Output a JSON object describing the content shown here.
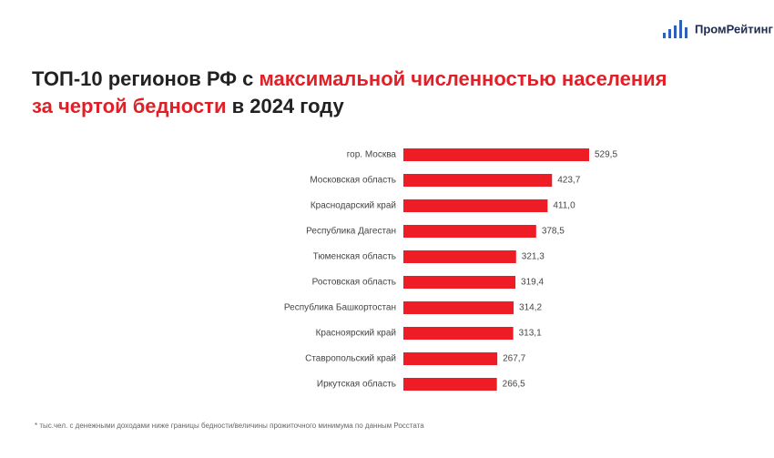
{
  "logo": "ПромРейтинг",
  "chart_data": {
    "type": "hbar",
    "title_parts": [
      "ТОП-10 регионов РФ с ",
      "максимальной численностью населения",
      "за чертой бедности",
      " в 2024 году"
    ],
    "categories": [
      "гор. Москва",
      "Московская область",
      "Краснодарский край",
      "Республика Дагестан",
      "Тюменская область",
      "Ростовская область",
      "Республика Башкортостан",
      "Красноярский край",
      "Ставропольский край",
      "Иркутская область"
    ],
    "values": [
      529.5,
      423.7,
      411.0,
      378.5,
      321.3,
      319.4,
      314.2,
      313.1,
      267.7,
      266.5
    ],
    "value_labels": [
      "529,5",
      "423,7",
      "411,0",
      "378,5",
      "321,3",
      "319,4",
      "314,2",
      "313,1",
      "267,7",
      "266,5"
    ],
    "color": "#ee1c25",
    "footnote": "* тыс.чел. с денежными доходами ниже границы бедности/величины прожиточного минимума по данным Росстата"
  }
}
